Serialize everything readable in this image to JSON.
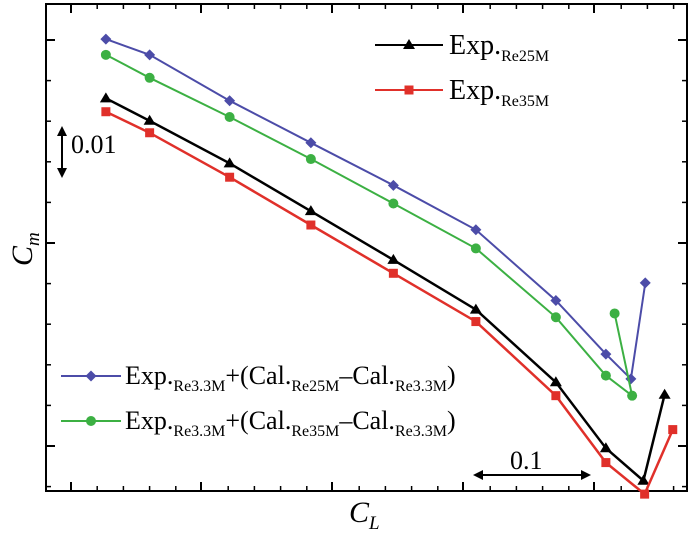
{
  "chart_data": {
    "type": "line",
    "title": "",
    "xlabel": "C",
    "xlabel_sub": "L",
    "ylabel": "C",
    "ylabel_sub": "m",
    "xlim": [
      0,
      1
    ],
    "ylim": [
      0,
      1
    ],
    "grid": false,
    "tick_labels": false,
    "scale_bars": {
      "vertical": "0.01",
      "horizontal": "0.1"
    },
    "legends": [
      {
        "placement": "top-right",
        "entries": [
          {
            "series": 0,
            "base": "Exp.",
            "sub": "Re25M"
          },
          {
            "series": 1,
            "base": "Exp.",
            "sub": "Re35M"
          }
        ]
      },
      {
        "placement": "bottom-left",
        "entries": [
          {
            "series": 2,
            "parts": [
              [
                "Exp.",
                "Re3.3M"
              ],
              [
                "+(Cal.",
                "Re25M"
              ],
              [
                "–Cal.",
                "Re3.3M"
              ],
              [
                ")",
                ""
              ]
            ]
          },
          {
            "series": 3,
            "parts": [
              [
                "Exp.",
                "Re3.3M"
              ],
              [
                "+(Cal.",
                "Re35M"
              ],
              [
                "–Cal.",
                "Re3.3M"
              ],
              [
                ")",
                ""
              ]
            ]
          }
        ]
      }
    ],
    "series": [
      {
        "name": "Exp.Re25M",
        "color": "#000000",
        "marker": "triangle",
        "points": [
          [
            0.083,
            0.811
          ],
          [
            0.153,
            0.764
          ],
          [
            0.281,
            0.675
          ],
          [
            0.411,
            0.575
          ],
          [
            0.543,
            0.473
          ],
          [
            0.675,
            0.369
          ],
          [
            0.803,
            0.217
          ],
          [
            0.883,
            0.079
          ],
          [
            0.943,
            0.011
          ],
          [
            0.977,
            0.191
          ]
        ]
      },
      {
        "name": "Exp.Re35M",
        "color": "#e0302a",
        "marker": "square",
        "points": [
          [
            0.083,
            0.783
          ],
          [
            0.153,
            0.739
          ],
          [
            0.281,
            0.646
          ],
          [
            0.411,
            0.546
          ],
          [
            0.543,
            0.445
          ],
          [
            0.675,
            0.344
          ],
          [
            0.803,
            0.189
          ],
          [
            0.883,
            0.049
          ],
          [
            0.945,
            -0.017
          ],
          [
            0.99,
            0.118
          ]
        ]
      },
      {
        "name": "Exp.Re3.3M+(Cal.Re25M–Cal.Re3.3M)",
        "color": "#4c4ca8",
        "marker": "diamond",
        "points": [
          [
            0.083,
            0.935
          ],
          [
            0.153,
            0.902
          ],
          [
            0.281,
            0.806
          ],
          [
            0.411,
            0.718
          ],
          [
            0.543,
            0.629
          ],
          [
            0.675,
            0.536
          ],
          [
            0.803,
            0.388
          ],
          [
            0.883,
            0.276
          ],
          [
            0.923,
            0.224
          ],
          [
            0.946,
            0.425
          ]
        ]
      },
      {
        "name": "Exp.Re3.3M+(Cal.Re35M–Cal.Re3.3M)",
        "color": "#3cb043",
        "marker": "circle",
        "points": [
          [
            0.083,
            0.902
          ],
          [
            0.153,
            0.854
          ],
          [
            0.281,
            0.772
          ],
          [
            0.411,
            0.684
          ],
          [
            0.543,
            0.591
          ],
          [
            0.675,
            0.497
          ],
          [
            0.803,
            0.353
          ],
          [
            0.883,
            0.231
          ],
          [
            0.925,
            0.189
          ],
          [
            0.897,
            0.361
          ]
        ]
      }
    ]
  }
}
